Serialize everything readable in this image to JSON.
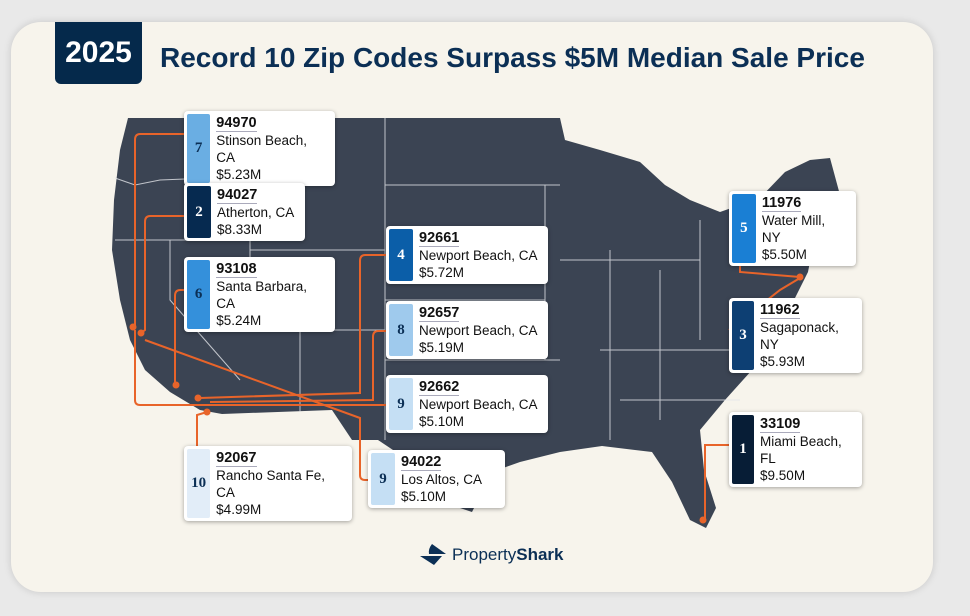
{
  "header": {
    "year": "2025",
    "title": "Record 10 Zip Codes Surpass $5M Median Sale Price"
  },
  "cards": [
    {
      "rank": "7",
      "zip": "94970",
      "place": "Stinson Beach, CA",
      "price": "$5.23M",
      "color": "#6aaee3",
      "text": "#0b2f55"
    },
    {
      "rank": "2",
      "zip": "94027",
      "place": "Atherton, CA",
      "price": "$8.33M",
      "color": "#062a50",
      "text": "#ffffff"
    },
    {
      "rank": "6",
      "zip": "93108",
      "place": "Santa Barbara, CA",
      "price": "$5.24M",
      "color": "#3490db",
      "text": "#0b2f55"
    },
    {
      "rank": "4",
      "zip": "92661",
      "place": "Newport Beach, CA",
      "price": "$5.72M",
      "color": "#0b5ea8",
      "text": "#ffffff"
    },
    {
      "rank": "8",
      "zip": "92657",
      "place": "Newport Beach, CA",
      "price": "$5.19M",
      "color": "#9fcaed",
      "text": "#0b2f55"
    },
    {
      "rank": "9",
      "zip": "92662",
      "place": "Newport Beach, CA",
      "price": "$5.10M",
      "color": "#c5dff4",
      "text": "#0b2f55"
    },
    {
      "rank": "10",
      "zip": "92067",
      "place": "Rancho Santa Fe, CA",
      "price": "$4.99M",
      "color": "#e2edf8",
      "text": "#0b2f55"
    },
    {
      "rank": "9",
      "zip": "94022",
      "place": "Los Altos, CA",
      "price": "$5.10M",
      "color": "#c5dff4",
      "text": "#0b2f55"
    },
    {
      "rank": "5",
      "zip": "11976",
      "place": "Water Mill, NY",
      "price": "$5.50M",
      "color": "#1a7fd4",
      "text": "#ffffff"
    },
    {
      "rank": "3",
      "zip": "11962",
      "place": "Sagaponack, NY",
      "price": "$5.93M",
      "color": "#0d3f73",
      "text": "#ffffff"
    },
    {
      "rank": "1",
      "zip": "33109",
      "place": "Miami Beach, FL",
      "price": "$9.50M",
      "color": "#071d36",
      "text": "#ffffff"
    }
  ],
  "colors": {
    "map": "#3b4453",
    "connector": "#e8642a",
    "brand": "#0b2f55"
  },
  "logo": {
    "part1": "Property",
    "part2": "Shark"
  }
}
